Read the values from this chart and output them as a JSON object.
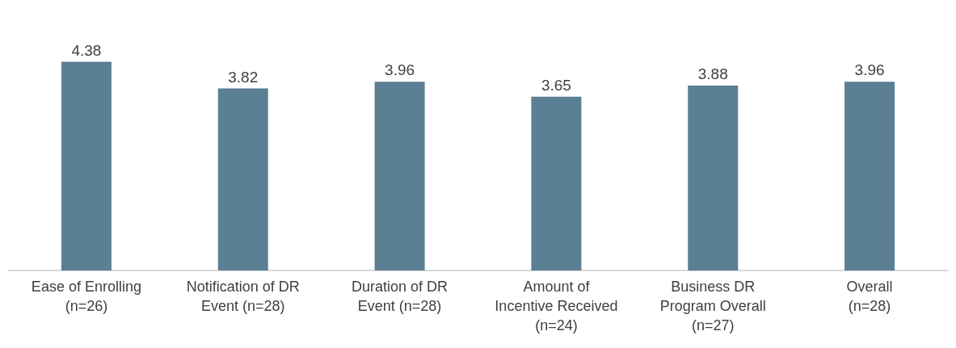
{
  "chart_data": {
    "type": "bar",
    "categories": [
      "Ease of Enrolling\n(n=26)",
      "Notification of DR\nEvent (n=28)",
      "Duration of DR\nEvent (n=28)",
      "Amount of\nIncentive Received\n(n=24)",
      "Business DR\nProgram Overall\n(n=27)",
      "Overall\n(n=28)"
    ],
    "values": [
      4.38,
      3.82,
      3.96,
      3.65,
      3.88,
      3.96
    ],
    "color": "#5b7f93",
    "data_labels": true,
    "tick_labels": "x"
  }
}
